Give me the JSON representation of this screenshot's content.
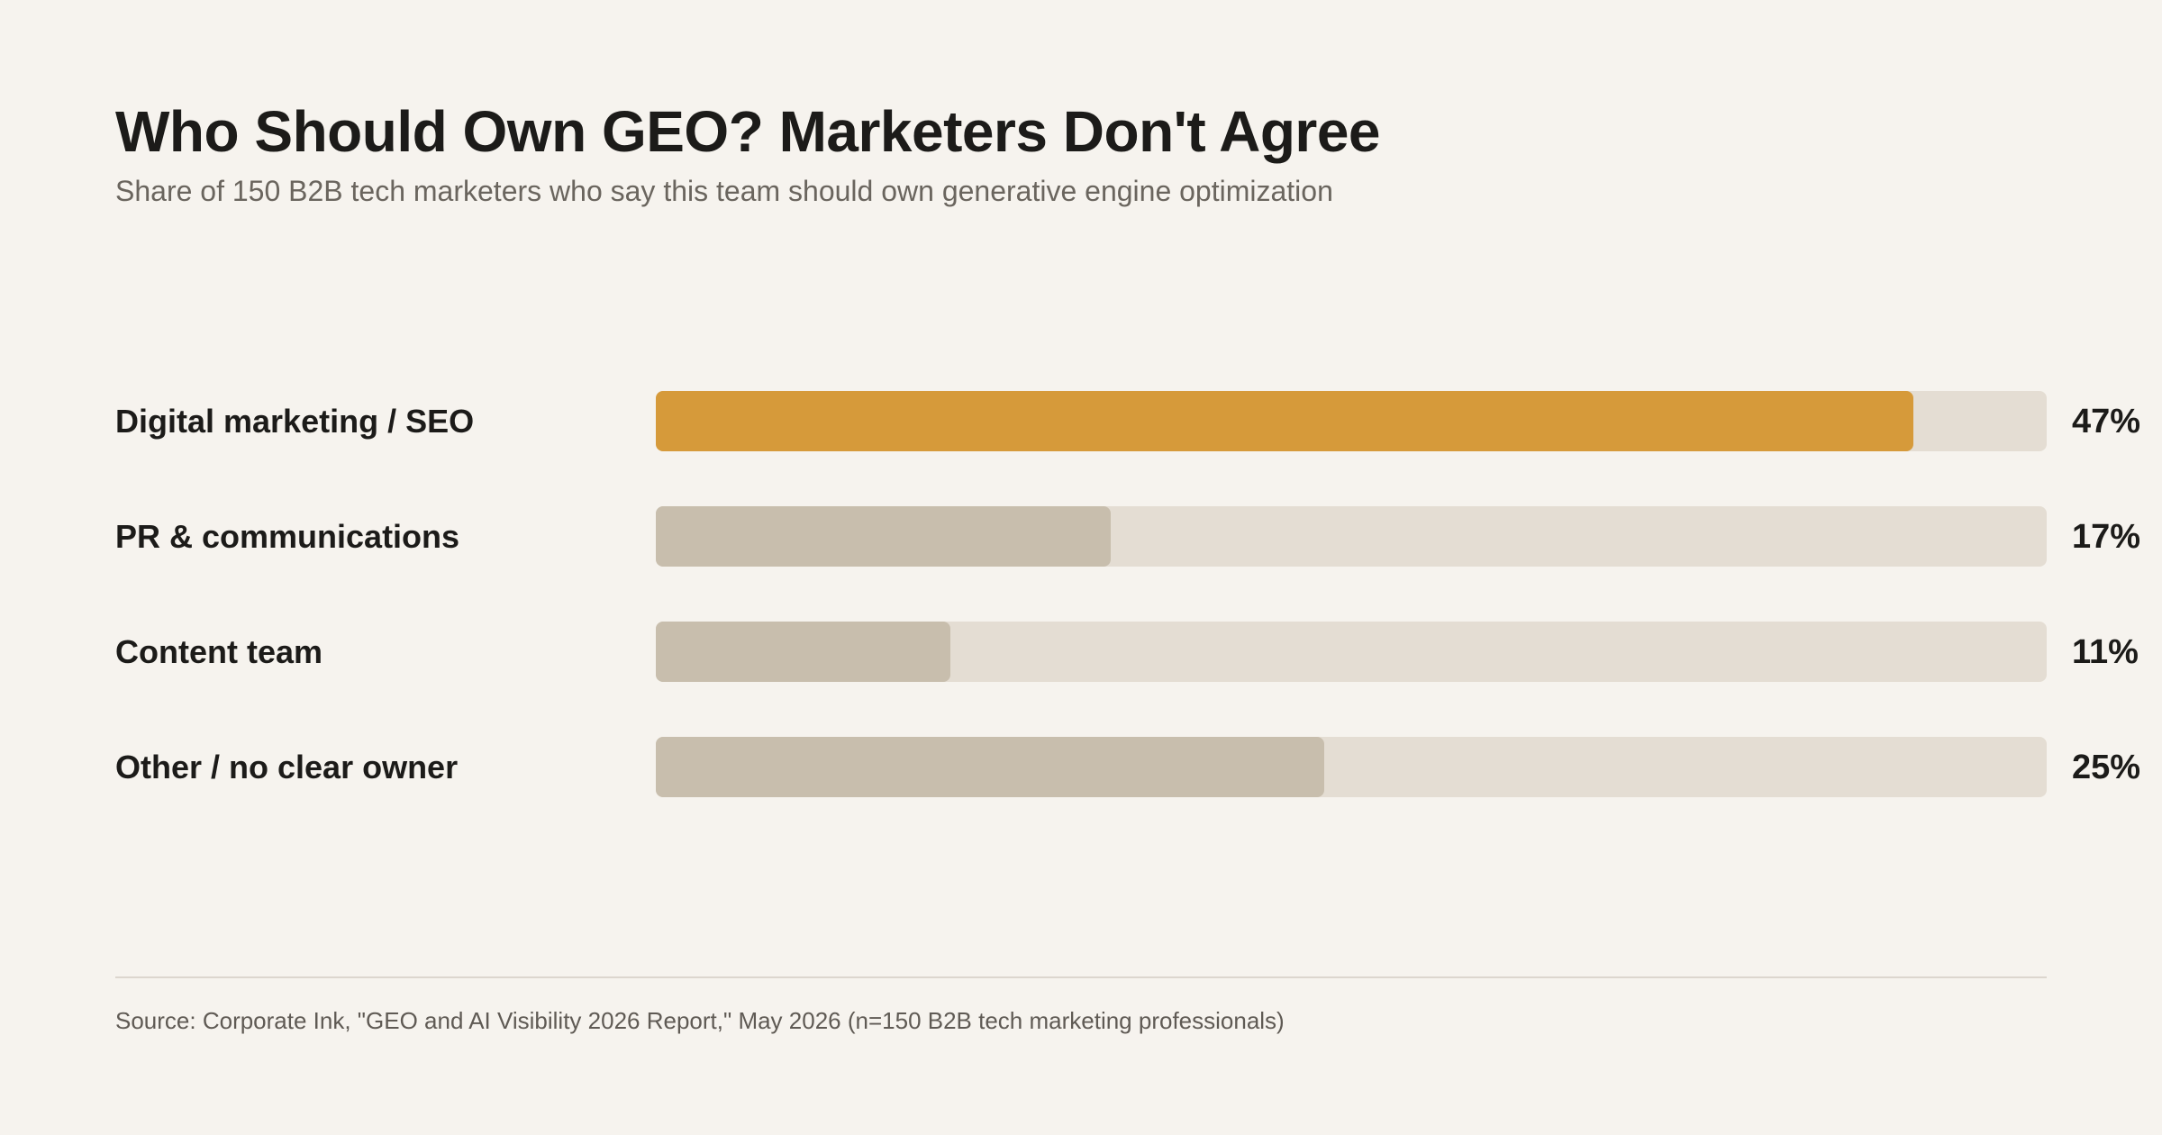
{
  "title": "Who Should Own GEO? Marketers Don't Agree",
  "subtitle": "Share of 150 B2B tech marketers who say this team should own generative engine optimization",
  "source": "Source: Corporate Ink, \"GEO and AI Visibility 2026 Report,\" May 2026 (n=150 B2B tech marketing professionals)",
  "colors": {
    "highlight": "#d69a3a",
    "bar": "#c8bead",
    "track": "#e4ddd3",
    "background": "#f6f3ee"
  },
  "chart_data": {
    "type": "bar",
    "orientation": "horizontal",
    "title": "Who Should Own GEO? Marketers Don't Agree",
    "subtitle": "Share of 150 B2B tech marketers who say this team should own generative engine optimization",
    "categories": [
      "Digital marketing / SEO",
      "PR & communications",
      "Content team",
      "Other / no clear owner"
    ],
    "values": [
      47,
      17,
      11,
      25
    ],
    "value_labels": [
      "47%",
      "17%",
      "11%",
      "25%"
    ],
    "highlighted": [
      true,
      false,
      false,
      false
    ],
    "xlim": [
      0,
      52
    ],
    "unit": "%",
    "grid": false,
    "legend": "none"
  }
}
